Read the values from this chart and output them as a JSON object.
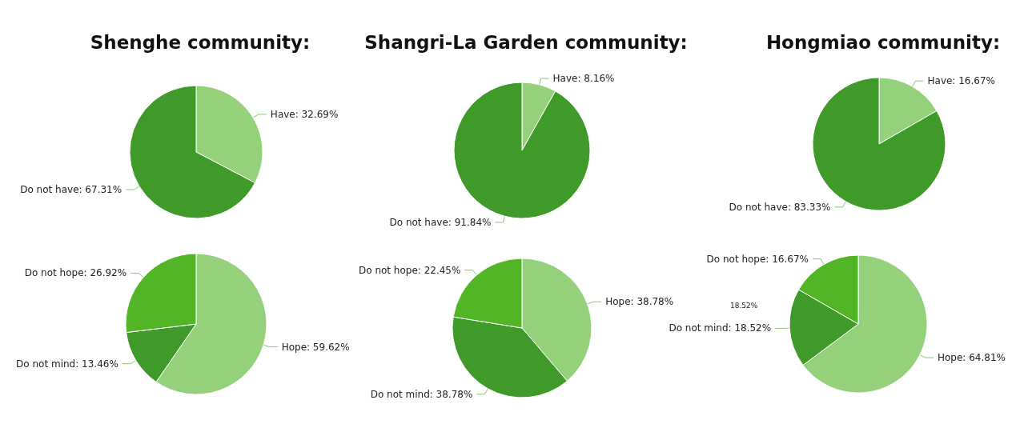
{
  "chart_data": [
    {
      "type": "pie",
      "title": "Shenghe community:",
      "categories": [
        "Have",
        "Do not have"
      ],
      "values": [
        32.69,
        67.31
      ],
      "value_labels": [
        "32.69%",
        "67.31%"
      ],
      "colors": [
        "#95d17a",
        "#3f9a2a"
      ]
    },
    {
      "type": "pie",
      "title": "Shangri-La Garden community:",
      "categories": [
        "Have",
        "Do not have"
      ],
      "values": [
        8.16,
        91.84
      ],
      "value_labels": [
        "8.16%",
        "91.84%"
      ],
      "colors": [
        "#95d17a",
        "#3f9a2a"
      ]
    },
    {
      "type": "pie",
      "title": "Hongmiao community:",
      "categories": [
        "Have",
        "Do not have"
      ],
      "values": [
        16.67,
        83.33
      ],
      "value_labels": [
        "16.67%",
        "83.33%"
      ],
      "colors": [
        "#95d17a",
        "#3f9a2a"
      ]
    },
    {
      "type": "pie",
      "categories": [
        "Hope",
        "Do not mind",
        "Do not hope"
      ],
      "values": [
        59.62,
        13.46,
        26.92
      ],
      "value_labels": [
        "59.62%",
        "13.46%",
        "26.92%"
      ],
      "colors": [
        "#95d17a",
        "#3f9a2a",
        "#52b526"
      ]
    },
    {
      "type": "pie",
      "categories": [
        "Hope",
        "Do not mind",
        "Do not hope"
      ],
      "values": [
        38.78,
        38.78,
        22.45
      ],
      "value_labels": [
        "38.78%",
        "38.78%",
        "22.45%"
      ],
      "colors": [
        "#95d17a",
        "#3f9a2a",
        "#52b526"
      ]
    },
    {
      "type": "pie",
      "categories": [
        "Hope",
        "Do not mind",
        "Do not hope"
      ],
      "values": [
        64.81,
        18.52,
        16.67
      ],
      "value_labels": [
        "64.81%",
        "18.52%",
        "16.67%"
      ],
      "colors": [
        "#95d17a",
        "#3f9a2a",
        "#52b526"
      ],
      "annotations": [
        "18.52%"
      ]
    }
  ]
}
